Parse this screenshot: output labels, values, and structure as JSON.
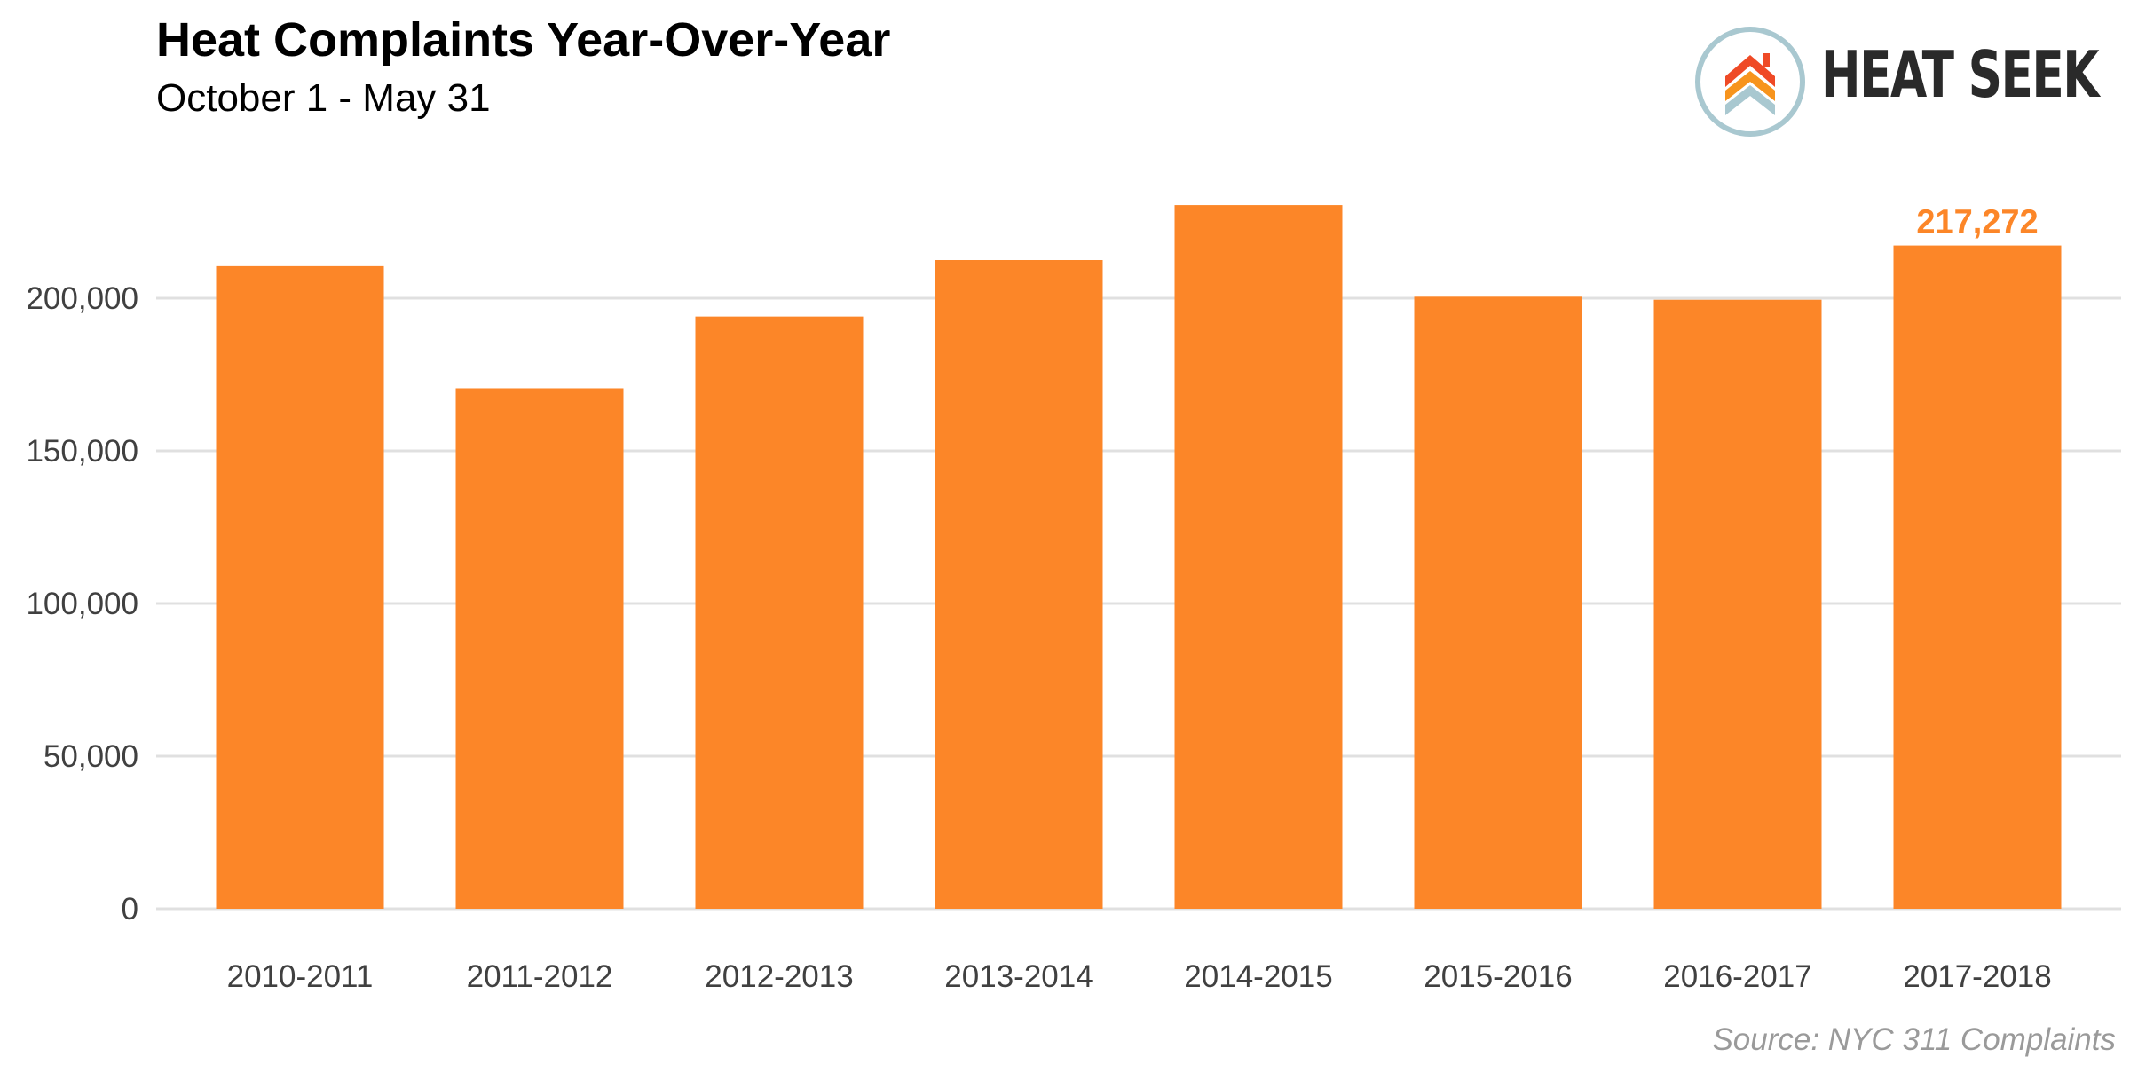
{
  "title": "Heat Complaints Year-Over-Year",
  "subtitle": "October 1 - May 31",
  "logo": {
    "text": "HEAT SEEK",
    "icon": "house-chevrons-icon"
  },
  "source": "Source: NYC 311 Complaints",
  "colors": {
    "bar": "#fc8628",
    "highlight_label": "#fc8628",
    "grid": "#e0e0e0",
    "tick_text": "#404040",
    "logo_ring": "#a9c8d0",
    "logo_red": "#ef4a26",
    "logo_orange": "#f7941d",
    "logo_blue": "#a9c8d0"
  },
  "chart_data": {
    "type": "bar",
    "categories": [
      "2010-2011",
      "2011-2012",
      "2012-2013",
      "2013-2014",
      "2014-2015",
      "2015-2016",
      "2016-2017",
      "2017-2018"
    ],
    "values": [
      210500,
      170500,
      194000,
      212500,
      230500,
      200500,
      199500,
      217272
    ],
    "data_labels": [
      {
        "category": "2017-2018",
        "text": "217,272"
      }
    ],
    "y_ticks": [
      0,
      50000,
      100000,
      150000,
      200000
    ],
    "y_tick_labels": [
      "0",
      "50,000",
      "100,000",
      "150,000",
      "200,000"
    ],
    "ylim": [
      0,
      240000
    ],
    "xlabel": "",
    "ylabel": "",
    "grid": true,
    "legend": false
  }
}
